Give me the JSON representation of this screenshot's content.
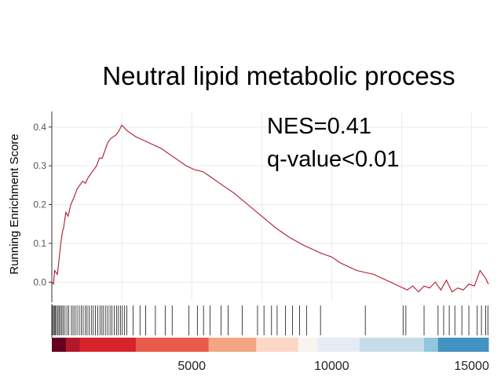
{
  "chart_data": {
    "type": "line",
    "title": "Neutral lipid metabolic process",
    "ylabel": "Running Enrichment Score",
    "xlabel": "",
    "xlim": [
      0,
      15600
    ],
    "ylim": [
      -0.05,
      0.44
    ],
    "x_ticks": [
      5000,
      10000,
      15000
    ],
    "y_ticks": [
      0.0,
      0.1,
      0.2,
      0.3,
      0.4
    ],
    "y_tick_labels": [
      "0.0",
      "0.1",
      "0.2",
      "0.3",
      "0.4"
    ],
    "grid": true,
    "annotations": [
      "NES=0.41",
      "q-value<0.01"
    ],
    "line_color": "#b2182b",
    "series": [
      {
        "x": [
          0,
          60,
          100,
          150,
          200,
          260,
          320,
          380,
          420,
          500,
          580,
          680,
          800,
          900,
          1000,
          1100,
          1200,
          1300,
          1400,
          1500,
          1600,
          1700,
          1800,
          1900,
          2000,
          2100,
          2200,
          2300,
          2400,
          2500,
          2700,
          3000,
          3300,
          3600,
          3900,
          4200,
          4500,
          4800,
          5100,
          5400,
          5700,
          6000,
          6500,
          7000,
          7500,
          8000,
          8500,
          9000,
          9300,
          9600,
          10000,
          10300,
          10600,
          10900,
          11200,
          11500,
          11800,
          12100,
          12400,
          12700,
          12900,
          13100,
          13300,
          13500,
          13700,
          13900,
          14100,
          14300,
          14500,
          14700,
          14900,
          15100,
          15300,
          15500,
          15600
        ],
        "y": [
          0.0,
          -0.005,
          0.03,
          0.025,
          0.02,
          0.06,
          0.1,
          0.13,
          0.14,
          0.18,
          0.17,
          0.2,
          0.22,
          0.24,
          0.25,
          0.26,
          0.255,
          0.27,
          0.28,
          0.29,
          0.3,
          0.32,
          0.32,
          0.34,
          0.36,
          0.37,
          0.375,
          0.38,
          0.39,
          0.405,
          0.39,
          0.375,
          0.365,
          0.355,
          0.345,
          0.33,
          0.315,
          0.3,
          0.29,
          0.285,
          0.27,
          0.255,
          0.23,
          0.2,
          0.17,
          0.14,
          0.115,
          0.095,
          0.085,
          0.075,
          0.065,
          0.05,
          0.04,
          0.03,
          0.025,
          0.02,
          0.01,
          0.0,
          -0.01,
          -0.02,
          -0.01,
          -0.025,
          -0.01,
          -0.015,
          0.0,
          -0.02,
          0.005,
          -0.025,
          -0.015,
          -0.02,
          -0.005,
          -0.01,
          0.03,
          0.01,
          -0.005
        ]
      }
    ],
    "hit_positions": [
      20,
      60,
      90,
      130,
      170,
      220,
      260,
      310,
      360,
      410,
      470,
      540,
      600,
      700,
      760,
      830,
      900,
      980,
      1050,
      1120,
      1200,
      1260,
      1330,
      1410,
      1480,
      1560,
      1640,
      1720,
      1790,
      1850,
      1930,
      2000,
      2080,
      2150,
      2230,
      2310,
      2380,
      2450,
      2520,
      2600,
      2680,
      2900,
      3150,
      3350,
      3700,
      4050,
      4300,
      4900,
      5200,
      5420,
      5650,
      6050,
      6300,
      6800,
      7350,
      7580,
      7850,
      8050,
      8350,
      8600,
      8850,
      9100,
      9600,
      11200,
      12550,
      12650,
      13300,
      13800,
      14000,
      14200,
      14400,
      14650,
      14900,
      15200,
      15350,
      15500,
      15580
    ],
    "ranking_color_bar": [
      {
        "x": 0,
        "color": "#67001f"
      },
      {
        "x": 500,
        "color": "#b2182b"
      },
      {
        "x": 1000,
        "color": "#d6242a"
      },
      {
        "x": 3000,
        "color": "#e85b4a"
      },
      {
        "x": 5600,
        "color": "#f4a582"
      },
      {
        "x": 7300,
        "color": "#fbd7c4"
      },
      {
        "x": 8800,
        "color": "#f7f4f2"
      },
      {
        "x": 9500,
        "color": "#e6ebf4"
      },
      {
        "x": 11000,
        "color": "#c7dce9"
      },
      {
        "x": 13300,
        "color": "#92c5de"
      },
      {
        "x": 13800,
        "color": "#4393c3"
      },
      {
        "x": 15600,
        "color": "#2166ac"
      }
    ]
  }
}
